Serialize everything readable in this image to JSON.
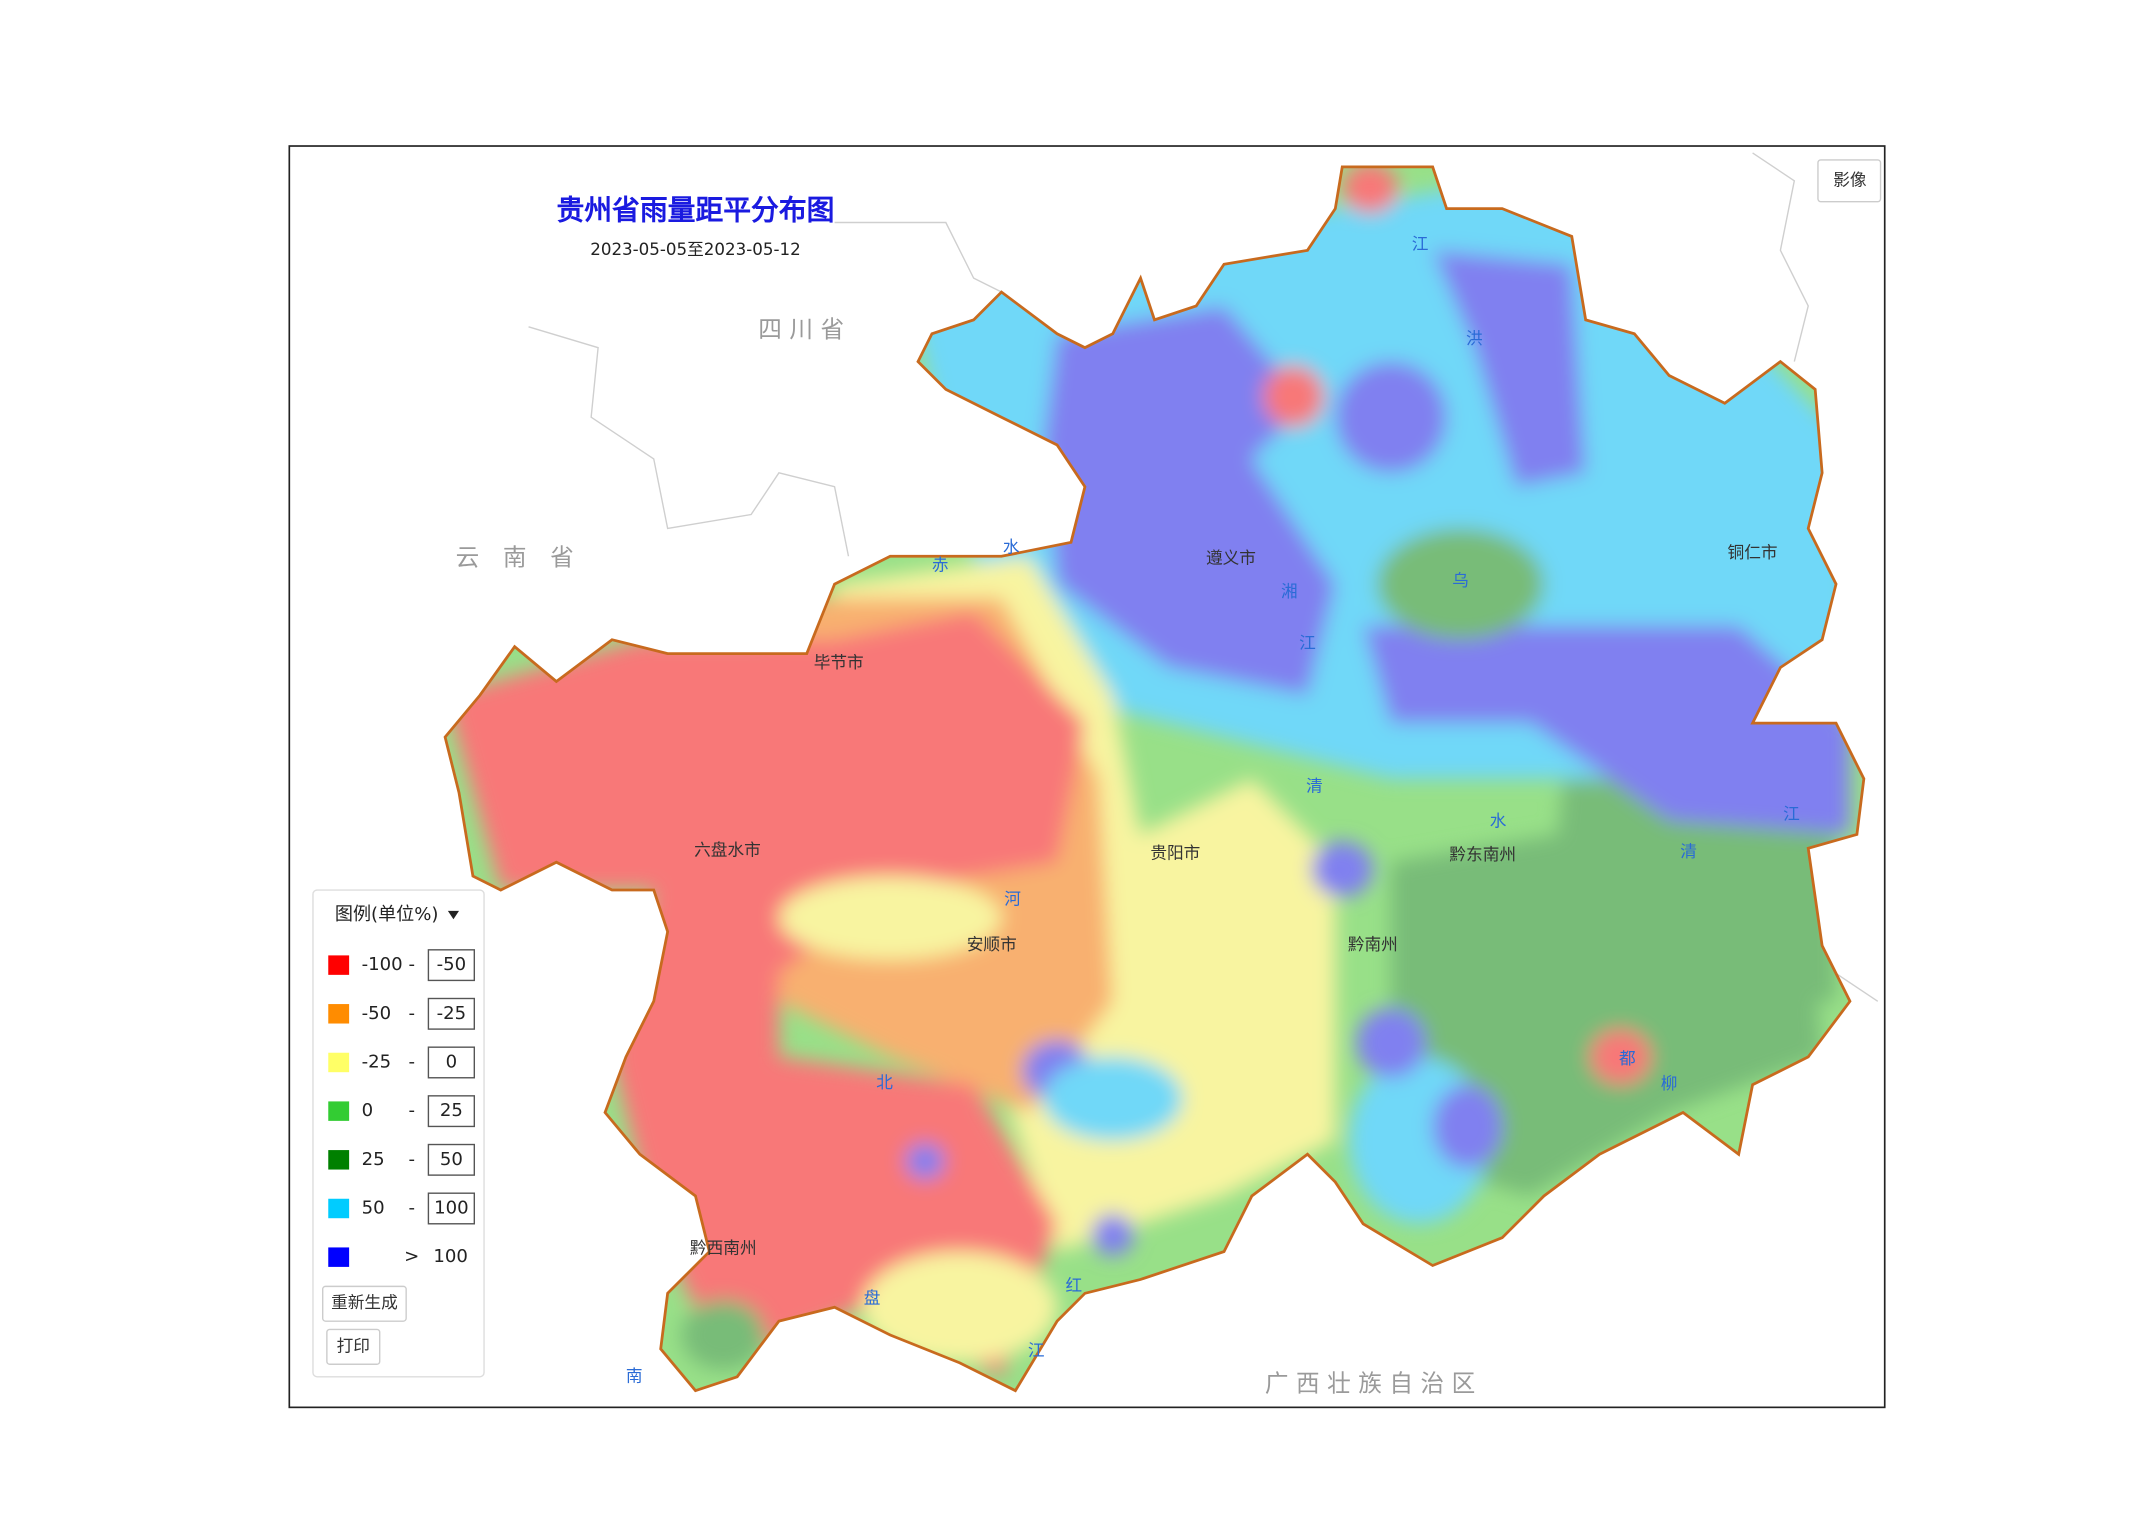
{
  "header": {
    "title": "贵州省雨量距平分布图",
    "subtitle": "2023-05-05至2023-05-12"
  },
  "layer_button": "影像",
  "provinces": [
    "四 川 省",
    "云　南　省",
    "广 西 壮 族 自 治 区"
  ],
  "cities": [
    "遵义市",
    "毕节市",
    "六盘水市",
    "安顺市",
    "贵阳市",
    "黔南州",
    "黔东南州",
    "铜仁市",
    "黔西南州"
  ],
  "rivers": [
    "赤",
    "水",
    "乌",
    "江",
    "湘",
    "清",
    "水",
    "清",
    "江",
    "都",
    "柳",
    "红",
    "江",
    "南",
    "盘",
    "北",
    "河",
    "洪",
    "江"
  ],
  "legend": {
    "title": "图例(单位%)",
    "items": [
      {
        "color": "#ff0000",
        "low": "-100",
        "sep": "-",
        "high": "-50"
      },
      {
        "color": "#ff8c00",
        "low": "-50",
        "sep": "-",
        "high": "-25"
      },
      {
        "color": "#ffff66",
        "low": "-25",
        "sep": "-",
        "high": "0"
      },
      {
        "color": "#33cc33",
        "low": "0",
        "sep": "-",
        "high": "25"
      },
      {
        "color": "#008000",
        "low": "25",
        "sep": "-",
        "high": "50"
      },
      {
        "color": "#00ccff",
        "low": "50",
        "sep": "-",
        "high": "100"
      },
      {
        "color": "#0000ff",
        "sep": ">",
        "high": "100"
      }
    ],
    "buttons": [
      "重新生成",
      "打印"
    ]
  }
}
